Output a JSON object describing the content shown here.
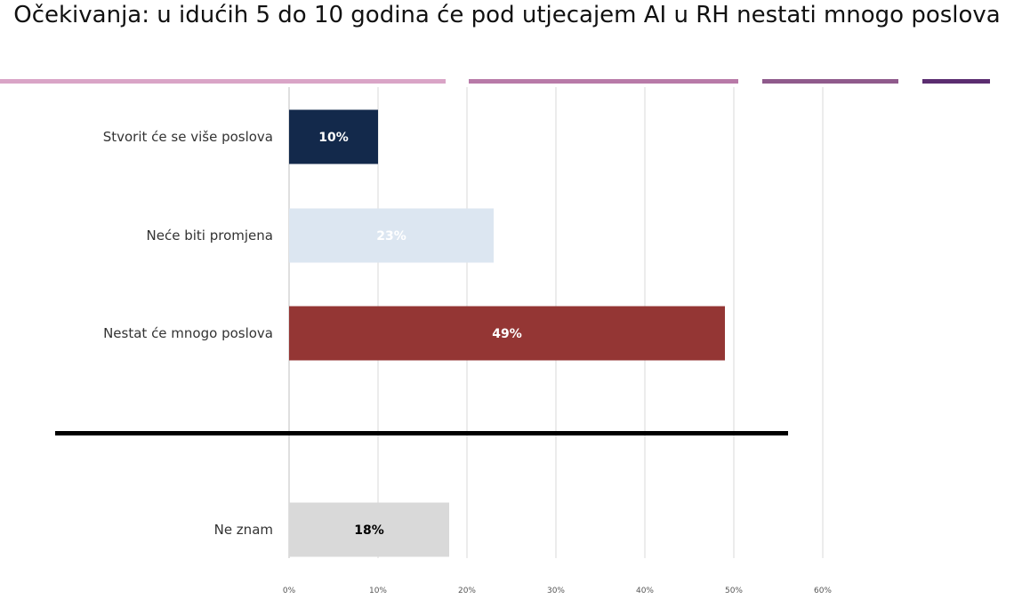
{
  "title": "Očekivanja: u idućih 5 do 10 godina će pod utjecajem AI u RH nestati mnogo poslova",
  "decor_colors": [
    "#d9a4c6",
    "#b87aa8",
    "#8f5a8c",
    "#5b2d70"
  ],
  "chart_data": {
    "type": "bar",
    "orientation": "horizontal",
    "categories": [
      "Stvorit će se više poslova",
      "Neće biti promjena",
      "Nestat će mnogo poslova",
      "Ne znam"
    ],
    "values": [
      10,
      23,
      49,
      18
    ],
    "value_labels": [
      "10%",
      "23%",
      "49%",
      "18%"
    ],
    "colors": [
      "#13294b",
      "#dce6f1",
      "#943634",
      "#d9d9d9"
    ],
    "label_colors": [
      "#ffffff",
      "#ffffff",
      "#ffffff",
      "#000000"
    ],
    "xlim": [
      0,
      60
    ],
    "xticks": [
      0,
      10,
      20,
      30,
      40,
      50,
      60
    ],
    "xtick_labels": [
      "0%",
      "10%",
      "20%",
      "30%",
      "40%",
      "50%",
      "60%"
    ],
    "grid": true,
    "separator_after_category": 3
  }
}
